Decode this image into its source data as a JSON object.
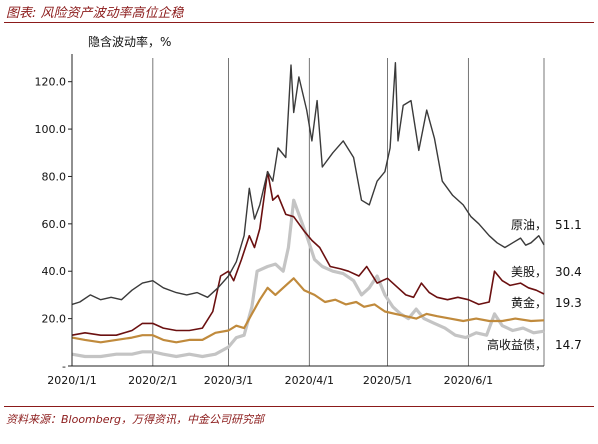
{
  "figure_title": "图表: 风险资产波动率高位企稳",
  "source_note": "资料来源：Bloomberg，万得资讯，中金公司研究部",
  "chart_data": {
    "type": "line",
    "ylabel": "隐含波动率，%",
    "ylim": [
      0,
      130
    ],
    "yticks": [
      {
        "value": 0,
        "label": "-"
      },
      {
        "value": 20,
        "label": "20.0"
      },
      {
        "value": 40,
        "label": "40.0"
      },
      {
        "value": 60,
        "label": "60.0"
      },
      {
        "value": 80,
        "label": "80.0"
      },
      {
        "value": 100,
        "label": "100.0"
      },
      {
        "value": 120,
        "label": "120.0"
      }
    ],
    "xlim": [
      "2020-01-01",
      "2020-06-30"
    ],
    "xticks": [
      "2020/1/1",
      "2020/2/1",
      "2020/3/1",
      "2020/4/1",
      "2020/5/1",
      "2020/6/1"
    ],
    "grid": "vertical",
    "legend": "end-labels",
    "series": [
      {
        "name": "原油",
        "end_value": "51.1",
        "color": "#3a3a3a",
        "points": [
          [
            "2020-01-01",
            26
          ],
          [
            "2020-01-04",
            27
          ],
          [
            "2020-01-08",
            30
          ],
          [
            "2020-01-12",
            28
          ],
          [
            "2020-01-16",
            29
          ],
          [
            "2020-01-20",
            28
          ],
          [
            "2020-01-24",
            32
          ],
          [
            "2020-01-28",
            35
          ],
          [
            "2020-02-01",
            36
          ],
          [
            "2020-02-05",
            33
          ],
          [
            "2020-02-10",
            31
          ],
          [
            "2020-02-14",
            30
          ],
          [
            "2020-02-18",
            31
          ],
          [
            "2020-02-22",
            29
          ],
          [
            "2020-02-26",
            33
          ],
          [
            "2020-03-01",
            38
          ],
          [
            "2020-03-04",
            44
          ],
          [
            "2020-03-07",
            55
          ],
          [
            "2020-03-09",
            75
          ],
          [
            "2020-03-11",
            62
          ],
          [
            "2020-03-13",
            68
          ],
          [
            "2020-03-16",
            82
          ],
          [
            "2020-03-18",
            78
          ],
          [
            "2020-03-20",
            92
          ],
          [
            "2020-03-23",
            88
          ],
          [
            "2020-03-25",
            127
          ],
          [
            "2020-03-26",
            107
          ],
          [
            "2020-03-28",
            122
          ],
          [
            "2020-03-31",
            108
          ],
          [
            "2020-04-02",
            95
          ],
          [
            "2020-04-04",
            112
          ],
          [
            "2020-04-06",
            84
          ],
          [
            "2020-04-10",
            90
          ],
          [
            "2020-04-14",
            95
          ],
          [
            "2020-04-18",
            88
          ],
          [
            "2020-04-21",
            70
          ],
          [
            "2020-04-24",
            68
          ],
          [
            "2020-04-27",
            78
          ],
          [
            "2020-04-30",
            82
          ],
          [
            "2020-05-02",
            92
          ],
          [
            "2020-05-04",
            128
          ],
          [
            "2020-05-05",
            95
          ],
          [
            "2020-05-07",
            110
          ],
          [
            "2020-05-10",
            112
          ],
          [
            "2020-05-13",
            91
          ],
          [
            "2020-05-16",
            108
          ],
          [
            "2020-05-19",
            96
          ],
          [
            "2020-05-22",
            78
          ],
          [
            "2020-05-26",
            72
          ],
          [
            "2020-05-30",
            68
          ],
          [
            "2020-06-02",
            63
          ],
          [
            "2020-06-05",
            60
          ],
          [
            "2020-06-09",
            55
          ],
          [
            "2020-06-12",
            52
          ],
          [
            "2020-06-15",
            50
          ],
          [
            "2020-06-18",
            52
          ],
          [
            "2020-06-21",
            54
          ],
          [
            "2020-06-23",
            51
          ],
          [
            "2020-06-25",
            52
          ],
          [
            "2020-06-28",
            55
          ],
          [
            "2020-06-30",
            51.1
          ]
        ]
      },
      {
        "name": "美股",
        "end_value": "30.4",
        "color": "#6b1010",
        "points": [
          [
            "2020-01-01",
            13
          ],
          [
            "2020-01-06",
            14
          ],
          [
            "2020-01-12",
            13
          ],
          [
            "2020-01-18",
            13
          ],
          [
            "2020-01-24",
            15
          ],
          [
            "2020-01-28",
            18
          ],
          [
            "2020-02-01",
            18
          ],
          [
            "2020-02-05",
            16
          ],
          [
            "2020-02-10",
            15
          ],
          [
            "2020-02-15",
            15
          ],
          [
            "2020-02-20",
            16
          ],
          [
            "2020-02-24",
            23
          ],
          [
            "2020-02-27",
            38
          ],
          [
            "2020-03-01",
            40
          ],
          [
            "2020-03-03",
            36
          ],
          [
            "2020-03-06",
            45
          ],
          [
            "2020-03-09",
            55
          ],
          [
            "2020-03-11",
            50
          ],
          [
            "2020-03-13",
            58
          ],
          [
            "2020-03-16",
            82
          ],
          [
            "2020-03-18",
            70
          ],
          [
            "2020-03-20",
            72
          ],
          [
            "2020-03-23",
            64
          ],
          [
            "2020-03-26",
            63
          ],
          [
            "2020-03-30",
            57
          ],
          [
            "2020-04-02",
            53
          ],
          [
            "2020-04-05",
            50
          ],
          [
            "2020-04-09",
            42
          ],
          [
            "2020-04-13",
            41
          ],
          [
            "2020-04-16",
            40
          ],
          [
            "2020-04-20",
            38
          ],
          [
            "2020-04-23",
            42
          ],
          [
            "2020-04-27",
            35
          ],
          [
            "2020-05-01",
            37
          ],
          [
            "2020-05-05",
            33
          ],
          [
            "2020-05-08",
            30
          ],
          [
            "2020-05-11",
            29
          ],
          [
            "2020-05-14",
            35
          ],
          [
            "2020-05-17",
            31
          ],
          [
            "2020-05-20",
            29
          ],
          [
            "2020-05-24",
            28
          ],
          [
            "2020-05-28",
            29
          ],
          [
            "2020-06-01",
            28
          ],
          [
            "2020-06-05",
            26
          ],
          [
            "2020-06-09",
            27
          ],
          [
            "2020-06-11",
            40
          ],
          [
            "2020-06-14",
            36
          ],
          [
            "2020-06-17",
            34
          ],
          [
            "2020-06-21",
            35
          ],
          [
            "2020-06-24",
            33
          ],
          [
            "2020-06-27",
            32
          ],
          [
            "2020-06-30",
            30.4
          ]
        ]
      },
      {
        "name": "黄金",
        "end_value": "19.3",
        "color": "#c08a3c",
        "points": [
          [
            "2020-01-01",
            12
          ],
          [
            "2020-01-06",
            11
          ],
          [
            "2020-01-12",
            10
          ],
          [
            "2020-01-18",
            11
          ],
          [
            "2020-01-24",
            12
          ],
          [
            "2020-01-28",
            13
          ],
          [
            "2020-02-01",
            13
          ],
          [
            "2020-02-05",
            11
          ],
          [
            "2020-02-10",
            10
          ],
          [
            "2020-02-15",
            11
          ],
          [
            "2020-02-20",
            11
          ],
          [
            "2020-02-25",
            14
          ],
          [
            "2020-03-01",
            15
          ],
          [
            "2020-03-04",
            17
          ],
          [
            "2020-03-07",
            16
          ],
          [
            "2020-03-10",
            22
          ],
          [
            "2020-03-13",
            28
          ],
          [
            "2020-03-16",
            33
          ],
          [
            "2020-03-19",
            30
          ],
          [
            "2020-03-23",
            34
          ],
          [
            "2020-03-26",
            37
          ],
          [
            "2020-03-30",
            32
          ],
          [
            "2020-04-03",
            30
          ],
          [
            "2020-04-07",
            27
          ],
          [
            "2020-04-11",
            28
          ],
          [
            "2020-04-15",
            26
          ],
          [
            "2020-04-19",
            27
          ],
          [
            "2020-04-22",
            25
          ],
          [
            "2020-04-26",
            26
          ],
          [
            "2020-04-30",
            23
          ],
          [
            "2020-05-04",
            22
          ],
          [
            "2020-05-08",
            21
          ],
          [
            "2020-05-12",
            20
          ],
          [
            "2020-05-16",
            22
          ],
          [
            "2020-05-20",
            21
          ],
          [
            "2020-05-25",
            20
          ],
          [
            "2020-05-30",
            19
          ],
          [
            "2020-06-04",
            20
          ],
          [
            "2020-06-09",
            19
          ],
          [
            "2020-06-14",
            19
          ],
          [
            "2020-06-19",
            20
          ],
          [
            "2020-06-25",
            19
          ],
          [
            "2020-06-30",
            19.3
          ]
        ]
      },
      {
        "name": "高收益债",
        "end_value": "14.7",
        "color": "#c4c4c4",
        "points": [
          [
            "2020-01-01",
            5
          ],
          [
            "2020-01-06",
            4
          ],
          [
            "2020-01-12",
            4
          ],
          [
            "2020-01-18",
            5
          ],
          [
            "2020-01-24",
            5
          ],
          [
            "2020-01-28",
            6
          ],
          [
            "2020-02-01",
            6
          ],
          [
            "2020-02-05",
            5
          ],
          [
            "2020-02-10",
            4
          ],
          [
            "2020-02-15",
            5
          ],
          [
            "2020-02-20",
            4
          ],
          [
            "2020-02-25",
            5
          ],
          [
            "2020-03-01",
            8
          ],
          [
            "2020-03-04",
            12
          ],
          [
            "2020-03-07",
            13
          ],
          [
            "2020-03-10",
            25
          ],
          [
            "2020-03-12",
            40
          ],
          [
            "2020-03-16",
            42
          ],
          [
            "2020-03-19",
            43
          ],
          [
            "2020-03-22",
            40
          ],
          [
            "2020-03-24",
            50
          ],
          [
            "2020-03-26",
            70
          ],
          [
            "2020-03-28",
            64
          ],
          [
            "2020-03-31",
            55
          ],
          [
            "2020-04-03",
            45
          ],
          [
            "2020-04-06",
            42
          ],
          [
            "2020-04-10",
            40
          ],
          [
            "2020-04-14",
            39
          ],
          [
            "2020-04-18",
            36
          ],
          [
            "2020-04-21",
            30
          ],
          [
            "2020-04-24",
            33
          ],
          [
            "2020-04-27",
            38
          ],
          [
            "2020-04-30",
            30
          ],
          [
            "2020-05-03",
            25
          ],
          [
            "2020-05-06",
            22
          ],
          [
            "2020-05-09",
            20
          ],
          [
            "2020-05-12",
            24
          ],
          [
            "2020-05-15",
            20
          ],
          [
            "2020-05-19",
            18
          ],
          [
            "2020-05-23",
            16
          ],
          [
            "2020-05-27",
            13
          ],
          [
            "2020-05-31",
            12
          ],
          [
            "2020-06-04",
            14
          ],
          [
            "2020-06-08",
            13
          ],
          [
            "2020-06-11",
            22
          ],
          [
            "2020-06-14",
            17
          ],
          [
            "2020-06-18",
            15
          ],
          [
            "2020-06-22",
            16
          ],
          [
            "2020-06-26",
            14
          ],
          [
            "2020-06-30",
            14.7
          ]
        ]
      }
    ]
  }
}
